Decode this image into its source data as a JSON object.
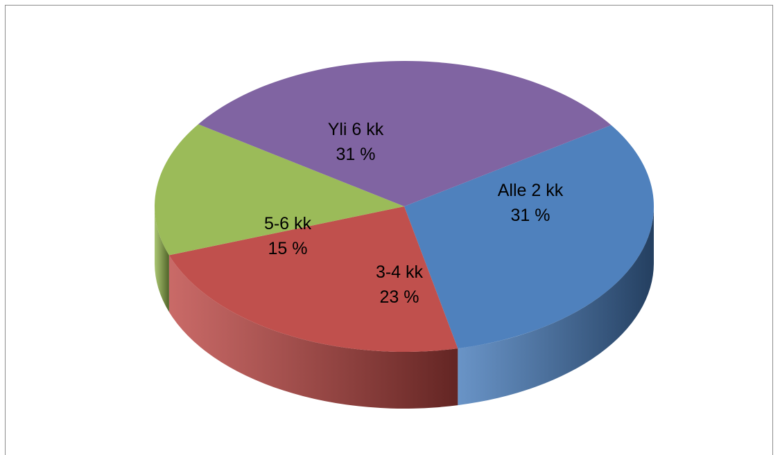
{
  "chart_data": {
    "type": "pie",
    "style": "3d",
    "title": "",
    "slices": [
      {
        "name": "Alle 2 kk",
        "value": 31,
        "label_value": "31 %",
        "color": "#4f81bd",
        "side_color": "#243f60"
      },
      {
        "name": "3-4 kk",
        "value": 23,
        "label_value": "23 %",
        "color": "#c0504d",
        "side_color": "#632523"
      },
      {
        "name": "5-6 kk",
        "value": 15,
        "label_value": "15 %",
        "color": "#9bbb59",
        "side_color": "#4f6228"
      },
      {
        "name": "Yli  6 kk",
        "value": 31,
        "label_value": "31 %",
        "color": "#8064a2",
        "side_color": "#3f3151"
      }
    ],
    "legend": "none"
  }
}
